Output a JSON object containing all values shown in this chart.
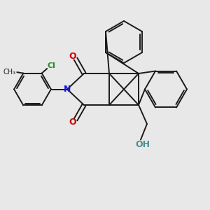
{
  "background_color": "#e8e8e8",
  "line_color": "#1a1a1a",
  "bond_width": 1.4,
  "N_color": "#1010ee",
  "O_color": "#cc0000",
  "Cl_color": "#228B22",
  "HO_color": "#4a9090",
  "figsize": [
    3.0,
    3.0
  ],
  "dpi": 100,
  "xlim": [
    0,
    10
  ],
  "ylim": [
    0,
    10
  ]
}
